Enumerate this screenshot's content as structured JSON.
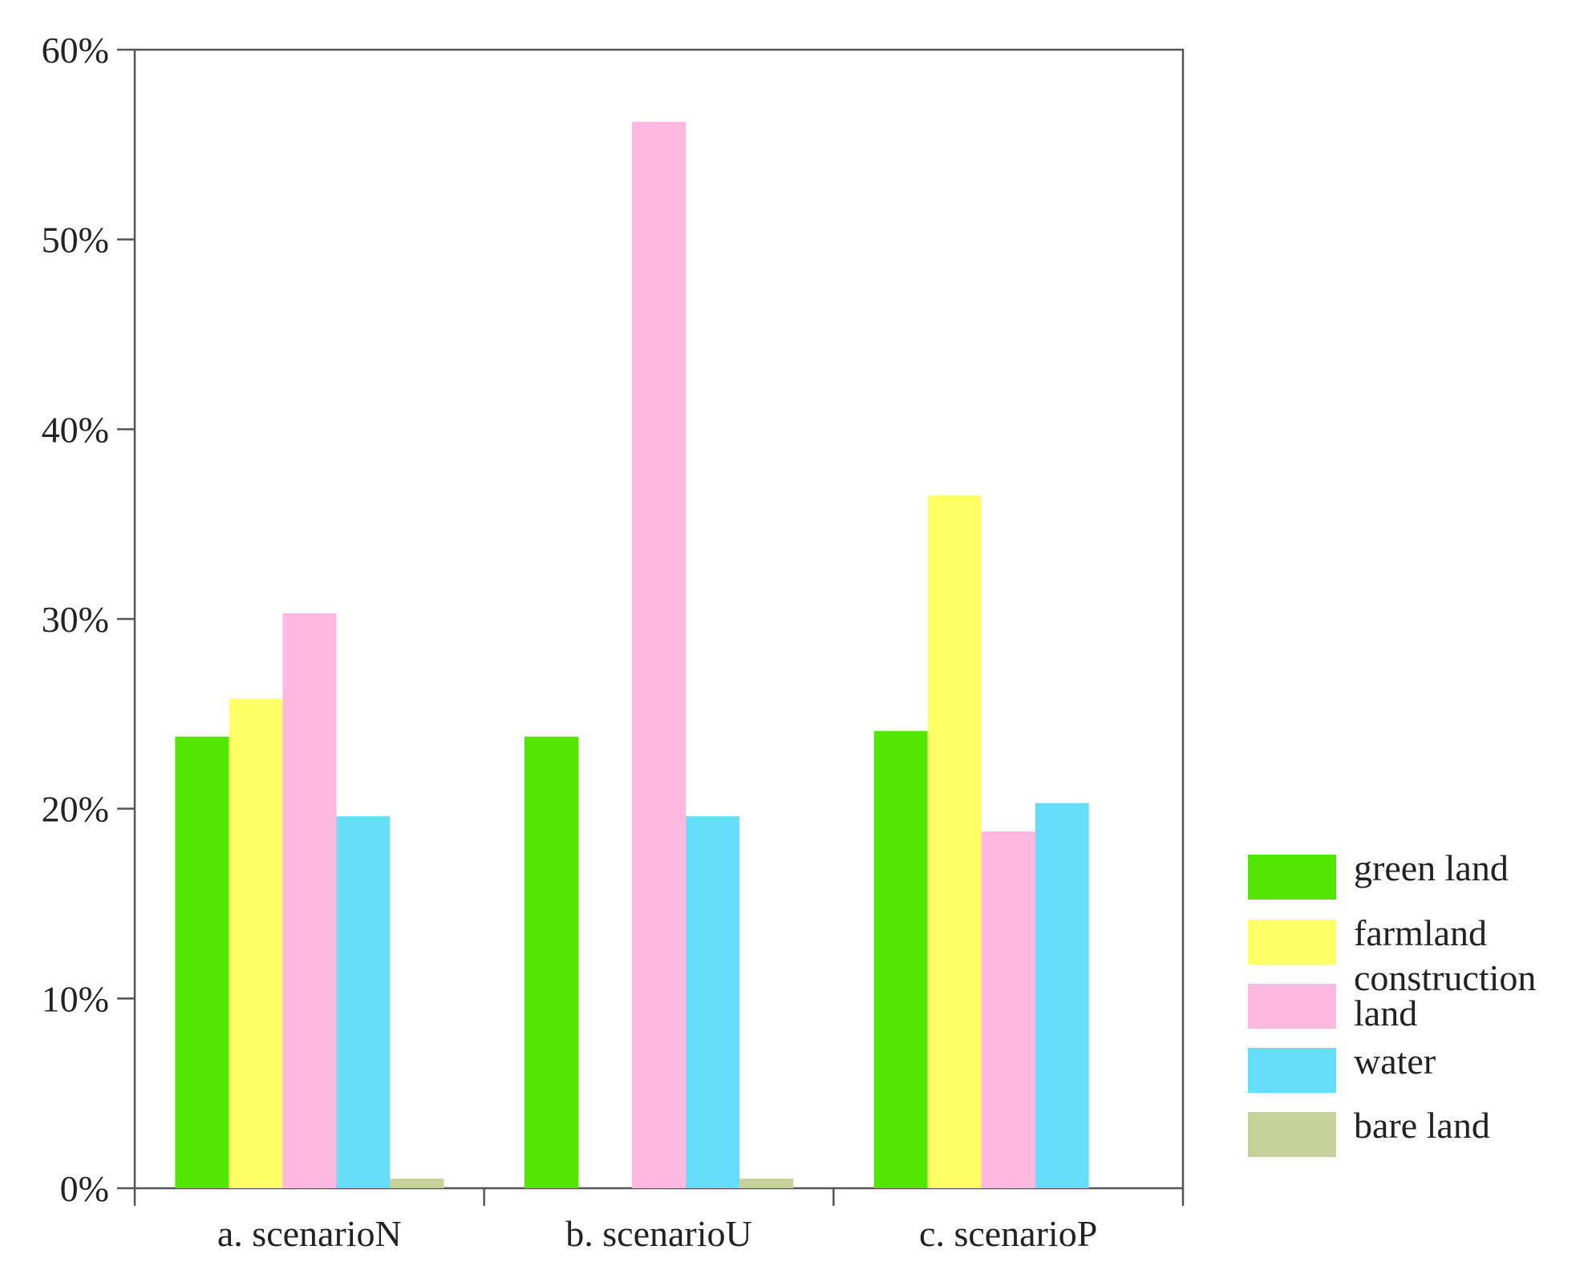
{
  "chart_data": {
    "type": "bar",
    "title": "",
    "xlabel": "",
    "ylabel": "",
    "ylim": [
      0,
      60
    ],
    "y_ticks": [
      0,
      10,
      20,
      30,
      40,
      50,
      60
    ],
    "y_tick_labels": [
      "0%",
      "10%",
      "20%",
      "30%",
      "40%",
      "50%",
      "60%"
    ],
    "grid": false,
    "legend_position": "right-bottom",
    "categories": [
      "a. scenarioN",
      "b. scenarioU",
      "c. scenarioP"
    ],
    "series": [
      {
        "name": "green land",
        "color": "#52e600",
        "values": [
          23.8,
          23.8,
          24.1
        ]
      },
      {
        "name": "farmland",
        "color": "#ffff66",
        "values": [
          25.8,
          0,
          36.5
        ]
      },
      {
        "name": "construction land",
        "color": "#ffb8e0",
        "values": [
          30.3,
          56.2,
          18.8
        ]
      },
      {
        "name": "water",
        "color": "#66ddfa",
        "values": [
          19.6,
          19.6,
          20.3
        ]
      },
      {
        "name": "bare land",
        "color": "#c6d19a",
        "values": [
          0.5,
          0.5,
          0
        ]
      }
    ],
    "legend_lines": [
      [
        "green land"
      ],
      [
        "farmland"
      ],
      [
        "construction",
        "land"
      ],
      [
        "water"
      ],
      [
        "bare land"
      ]
    ]
  }
}
